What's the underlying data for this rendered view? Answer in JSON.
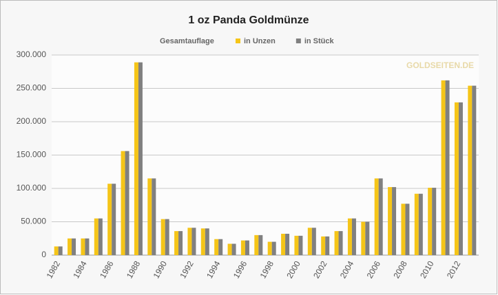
{
  "chart_data": {
    "type": "bar",
    "title": "1 oz Panda Goldmünze",
    "legend_title": "Gesamtauflage",
    "watermark": "GOLDSEITEN.DE",
    "categories": [
      "1982",
      null,
      "1984",
      null,
      "1986",
      null,
      "1988",
      null,
      "1990",
      null,
      "1992",
      null,
      "1994",
      null,
      "1996",
      null,
      "1998",
      null,
      "2000",
      null,
      "2002",
      null,
      "2004",
      null,
      "2006",
      null,
      "2008",
      null,
      "2010",
      null,
      "2012",
      null
    ],
    "series": [
      {
        "name": "in Unzen",
        "color": "#f5c518",
        "values": [
          13000,
          25000,
          25000,
          55000,
          107000,
          156000,
          289000,
          115000,
          54000,
          36000,
          41000,
          40000,
          24000,
          17000,
          22000,
          30000,
          20000,
          32000,
          29000,
          41000,
          28000,
          36000,
          55000,
          50000,
          115000,
          102000,
          77000,
          92000,
          101000,
          262000,
          229000,
          254000
        ]
      },
      {
        "name": "in Stück",
        "color": "#808080",
        "values": [
          13000,
          25000,
          25000,
          55000,
          107000,
          156000,
          289000,
          115000,
          54000,
          36000,
          41000,
          40000,
          24000,
          17000,
          22000,
          30000,
          20000,
          32000,
          29000,
          41000,
          28000,
          36000,
          55000,
          50000,
          115000,
          102000,
          77000,
          92000,
          101000,
          262000,
          229000,
          254000
        ]
      }
    ],
    "ylim": [
      0,
      300000
    ],
    "yticks": [
      {
        "value": 0,
        "label": "0"
      },
      {
        "value": 50000,
        "label": "50.000"
      },
      {
        "value": 100000,
        "label": "100.000"
      },
      {
        "value": 150000,
        "label": "150.000"
      },
      {
        "value": 200000,
        "label": "200.000"
      },
      {
        "value": 250000,
        "label": "250.000"
      },
      {
        "value": 300000,
        "label": "300.000"
      }
    ],
    "grid": true
  }
}
